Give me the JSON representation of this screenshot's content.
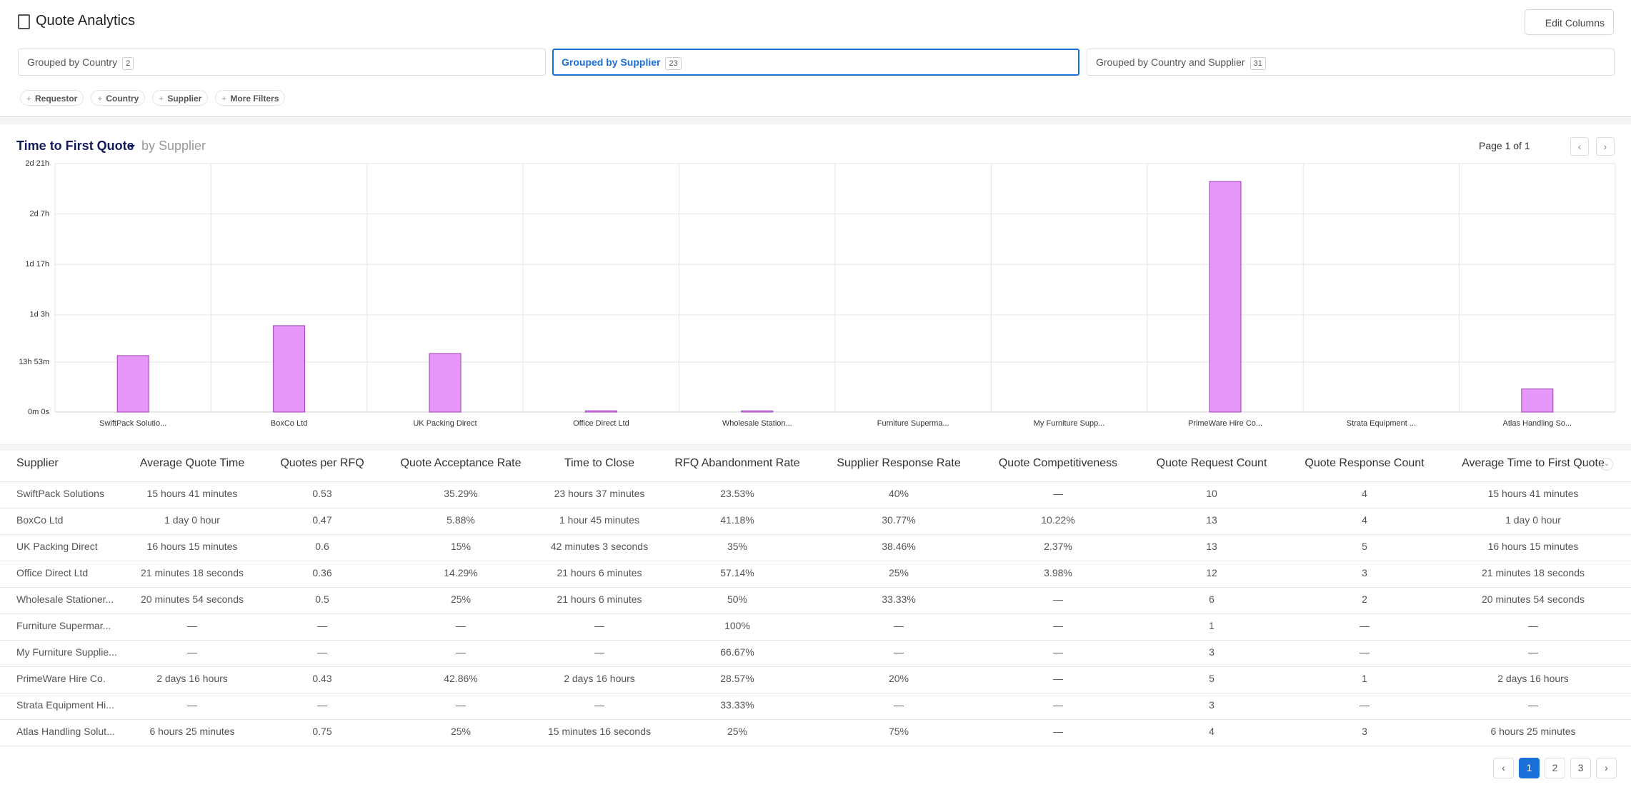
{
  "header": {
    "title": "Quote Analytics",
    "button": "Edit Columns"
  },
  "tabs": [
    {
      "label": "Grouped by Country",
      "count": 2
    },
    {
      "label": "Grouped by Supplier",
      "count": 23
    },
    {
      "label": "Grouped by Country and Supplier",
      "count": 31
    }
  ],
  "active_tab": 1,
  "filters": [
    "Requestor",
    "Country",
    "Supplier",
    "More Filters"
  ],
  "chart_data": {
    "type": "bar",
    "title": "Time to First Quote",
    "subtitle": "by Supplier",
    "categories": [
      "SwiftPack Solutio...",
      "BoxCo Ltd",
      "UK Packing Direct",
      "Office Direct Ltd",
      "Wholesale Station...",
      "Furniture Superma...",
      "My Furniture Supp...",
      "PrimeWare Hire Co...",
      "Strata Equipment ...",
      "Atlas Handling So..."
    ],
    "values": [
      15.68,
      24,
      16.25,
      0.355,
      0.348,
      null,
      null,
      64,
      null,
      6.42
    ],
    "color": "#e598f9",
    "ylim": [
      0,
      69
    ],
    "yticks": [
      {
        "value": 0,
        "label": "0m 0s"
      },
      {
        "value": 13.883,
        "label": "13h 53m"
      },
      {
        "value": 27,
        "label": "1d 3h"
      },
      {
        "value": 41,
        "label": "1d 17h"
      },
      {
        "value": 55,
        "label": "2d 7h"
      },
      {
        "value": 69,
        "label": "2d 21h"
      }
    ],
    "grid": true
  },
  "chart_page": "Page 1 of 1",
  "table": {
    "columns": [
      "Supplier",
      "Average Quote Time",
      "Quotes per RFQ",
      "Quote Acceptance Rate",
      "Time to Close",
      "RFQ Abandonment Rate",
      "Supplier Response Rate",
      "Quote Competitiveness",
      "Quote Request Count",
      "Quote Response Count",
      "Average Time to First Quote"
    ],
    "rows": [
      [
        "SwiftPack Solutions",
        "15 hours 41 minutes",
        "0.53",
        "35.29%",
        "23 hours 37 minutes",
        "23.53%",
        "40%",
        "—",
        "10",
        "4",
        "15 hours 41 minutes"
      ],
      [
        "BoxCo Ltd",
        "1 day 0 hour",
        "0.47",
        "5.88%",
        "1 hour 45 minutes",
        "41.18%",
        "30.77%",
        "10.22%",
        "13",
        "4",
        "1 day 0 hour"
      ],
      [
        "UK Packing Direct",
        "16 hours 15 minutes",
        "0.6",
        "15%",
        "42 minutes 3 seconds",
        "35%",
        "38.46%",
        "2.37%",
        "13",
        "5",
        "16 hours 15 minutes"
      ],
      [
        "Office Direct Ltd",
        "21 minutes 18 seconds",
        "0.36",
        "14.29%",
        "21 hours 6 minutes",
        "57.14%",
        "25%",
        "3.98%",
        "12",
        "3",
        "21 minutes 18 seconds"
      ],
      [
        "Wholesale Stationer...",
        "20 minutes 54 seconds",
        "0.5",
        "25%",
        "21 hours 6 minutes",
        "50%",
        "33.33%",
        "—",
        "6",
        "2",
        "20 minutes 54 seconds"
      ],
      [
        "Furniture Supermar...",
        "—",
        "—",
        "—",
        "—",
        "100%",
        "—",
        "—",
        "1",
        "—",
        "—"
      ],
      [
        "My Furniture Supplie...",
        "—",
        "—",
        "—",
        "—",
        "66.67%",
        "—",
        "—",
        "3",
        "—",
        "—"
      ],
      [
        "PrimeWare Hire Co.",
        "2 days 16 hours",
        "0.43",
        "42.86%",
        "2 days 16 hours",
        "28.57%",
        "20%",
        "—",
        "5",
        "1",
        "2 days 16 hours"
      ],
      [
        "Strata Equipment Hi...",
        "—",
        "—",
        "—",
        "—",
        "33.33%",
        "—",
        "—",
        "3",
        "—",
        "—"
      ],
      [
        "Atlas Handling Solut...",
        "6 hours 25 minutes",
        "0.75",
        "25%",
        "15 minutes 16 seconds",
        "25%",
        "75%",
        "—",
        "4",
        "3",
        "6 hours 25 minutes"
      ]
    ]
  },
  "pagination": {
    "pages": [
      1,
      2,
      3
    ],
    "current": 1
  }
}
